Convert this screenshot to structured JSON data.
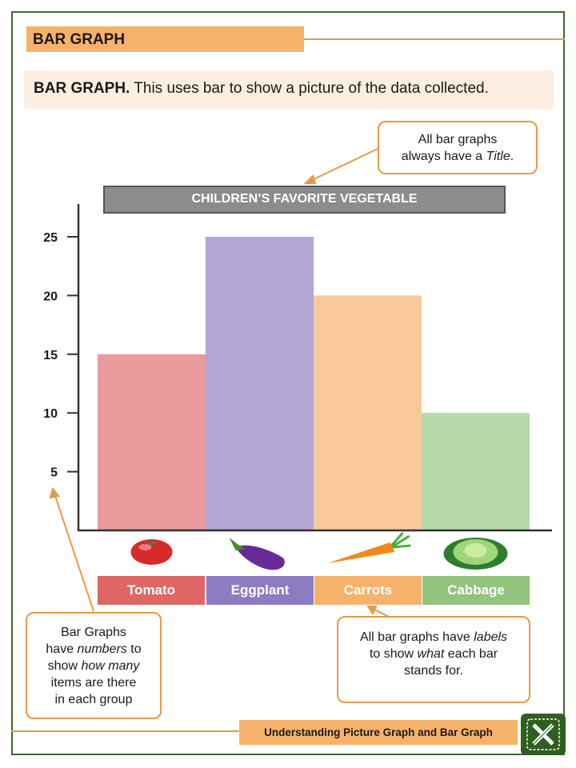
{
  "header": {
    "title": "BAR GRAPH"
  },
  "definition": {
    "term": "BAR GRAPH.",
    "text": "This uses bar to show a picture of the data collected."
  },
  "callouts": {
    "title_note": {
      "line1": "All bar graphs",
      "line2_prefix": "always have a ",
      "line2_em": "Title",
      "line2_suffix": "."
    },
    "numbers_note": {
      "l1": "Bar Graphs",
      "l2_prefix": "have ",
      "l2_em": "numbers",
      "l2_suffix": " to",
      "l3_prefix": "show ",
      "l3_em": "how many",
      "l4": "items are there",
      "l5": "in each group"
    },
    "labels_note": {
      "l1_prefix": "All bar graphs have ",
      "l1_em": "labels",
      "l2_prefix": "to show ",
      "l2_em": "what",
      "l2_suffix": " each bar",
      "l3": "stands for."
    }
  },
  "chart_data": {
    "type": "bar",
    "title": "CHILDREN’S FAVORITE VEGETABLE",
    "categories": [
      "Tomato",
      "Eggplant",
      "Carrots",
      "Cabbage"
    ],
    "values": [
      15,
      25,
      20,
      10
    ],
    "yticks": [
      5,
      10,
      15,
      20,
      25
    ],
    "ylim": [
      0,
      27
    ],
    "bar_colors": [
      "#ea9a9c",
      "#b3a5d6",
      "#f9c99a",
      "#b7d9a8"
    ],
    "label_colors": [
      "#e06666",
      "#8e7cc3",
      "#f6b26b",
      "#93c47d"
    ],
    "icons": [
      "tomato-icon",
      "eggplant-icon",
      "carrot-icon",
      "cabbage-icon"
    ]
  },
  "footer": {
    "text": "Understanding Picture Graph and Bar Graph",
    "logo_icon": "pencil-ruler-icon"
  }
}
